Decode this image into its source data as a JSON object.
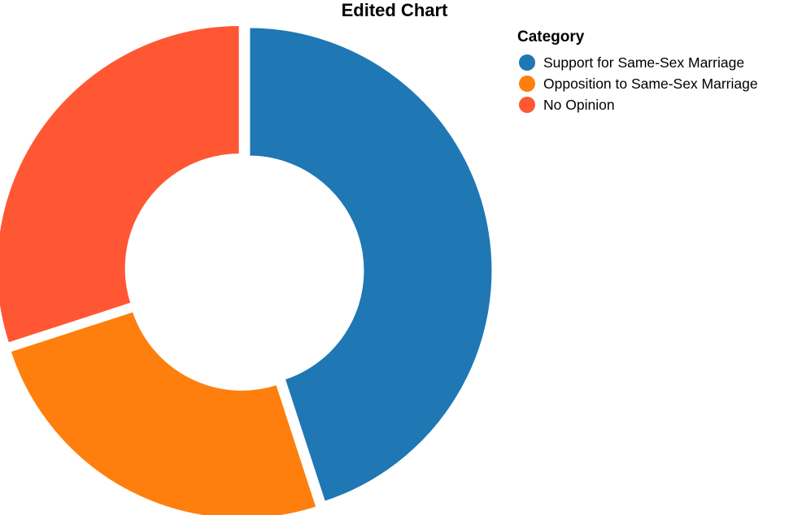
{
  "chart_data": {
    "type": "pie",
    "variant": "donut",
    "title": "Edited Chart",
    "legend": {
      "title": "Category",
      "placement": "top-right"
    },
    "categories": [
      "Support for Same-Sex Marriage",
      "Opposition to Same-Sex Marriage",
      "No Opinion"
    ],
    "values": [
      45,
      25,
      30
    ],
    "colors": [
      "#1f77b4",
      "#ff7f0e",
      "#ff5733"
    ]
  }
}
